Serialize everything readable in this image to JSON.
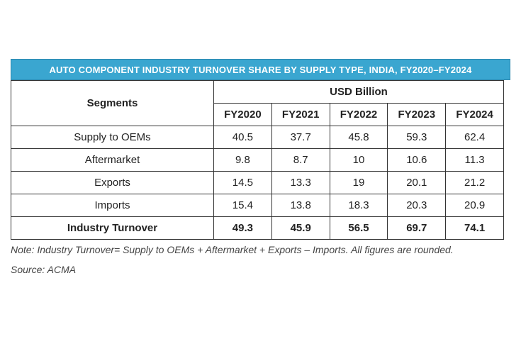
{
  "chart_data": {
    "type": "table",
    "title": "AUTO COMPONENT INDUSTRY TURNOVER SHARE BY SUPPLY TYPE, INDIA, FY2020–FY2024",
    "row_header": "Segments",
    "unit_header": "USD Billion",
    "columns": [
      "FY2020",
      "FY2021",
      "FY2022",
      "FY2023",
      "FY2024"
    ],
    "rows": [
      {
        "label": "Supply to OEMs",
        "values": [
          "40.5",
          "37.7",
          "45.8",
          "59.3",
          "62.4"
        ]
      },
      {
        "label": "Aftermarket",
        "values": [
          "9.8",
          "8.7",
          "10",
          "10.6",
          "11.3"
        ]
      },
      {
        "label": "Exports",
        "values": [
          "14.5",
          "13.3",
          "19",
          "20.1",
          "21.2"
        ]
      },
      {
        "label": "Imports",
        "values": [
          "15.4",
          "13.8",
          "18.3",
          "20.3",
          "20.9"
        ]
      },
      {
        "label": "Industry Turnover",
        "values": [
          "49.3",
          "45.9",
          "56.5",
          "69.7",
          "74.1"
        ],
        "bold": true
      }
    ],
    "note": "Note: Industry Turnover= Supply to OEMs + Aftermarket + Exports – Imports. All figures are rounded.",
    "source": "Source: ACMA",
    "colors": {
      "title_band": "#3aa6d0",
      "title_text": "#ffffff"
    }
  }
}
